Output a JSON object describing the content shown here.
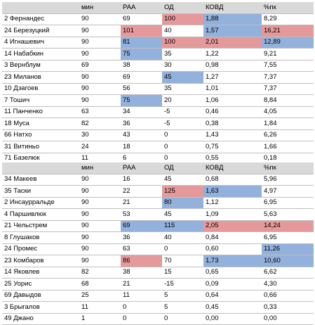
{
  "colors": {
    "header": "#d9d9d9",
    "red_highlight": "#e6999b",
    "blue_highlight": "#92b1dd"
  },
  "tables": [
    {
      "headers": [
        "",
        "мин",
        "РАА",
        "ОД",
        "КОВД",
        "%пк"
      ],
      "rows": [
        {
          "cells": [
            "2 Фернандес",
            "90",
            "69",
            "100",
            "1,88",
            "8,29"
          ],
          "hl": [
            "",
            "",
            "",
            "red",
            "blue",
            ""
          ]
        },
        {
          "cells": [
            "24 Березуцкий",
            "90",
            "101",
            "40",
            "1,57",
            "16,21"
          ],
          "hl": [
            "",
            "",
            "red",
            "",
            "blue",
            "red"
          ]
        },
        {
          "cells": [
            "4 Игнашевич",
            "90",
            "81",
            "100",
            "2,01",
            "12,89"
          ],
          "hl": [
            "",
            "",
            "blue",
            "red",
            "red",
            "blue"
          ]
        },
        {
          "cells": [
            "14 Набабкин",
            "90",
            "75",
            "35",
            "1,22",
            "9,21"
          ],
          "hl": [
            "",
            "",
            "blue",
            "",
            "",
            ""
          ]
        },
        {
          "cells": [
            "3 Вернблум",
            "69",
            "38",
            "30",
            "0,98",
            "7,55"
          ],
          "hl": [
            "",
            "",
            "",
            "",
            "",
            ""
          ]
        },
        {
          "cells": [
            "23 Миланов",
            "90",
            "69",
            "45",
            "1,27",
            "7,37"
          ],
          "hl": [
            "",
            "",
            "",
            "blue",
            "",
            ""
          ]
        },
        {
          "cells": [
            "10 Дзагоев",
            "90",
            "56",
            "35",
            "1,01",
            "7,37"
          ],
          "hl": [
            "",
            "",
            "",
            "",
            "",
            ""
          ]
        },
        {
          "cells": [
            "7 Тошич",
            "90",
            "75",
            "20",
            "1,06",
            "8,84"
          ],
          "hl": [
            "",
            "",
            "blue",
            "",
            "",
            ""
          ]
        },
        {
          "cells": [
            "11 Панченко",
            "63",
            "34",
            "-5",
            "0,46",
            "4,05"
          ],
          "hl": [
            "",
            "",
            "",
            "",
            "",
            ""
          ]
        },
        {
          "cells": [
            "18 Муса",
            "82",
            "36",
            "-5",
            "0,38",
            "1,84"
          ],
          "hl": [
            "",
            "",
            "",
            "",
            "",
            ""
          ]
        },
        {
          "cells": [
            "66 Натхо",
            "30",
            "43",
            "0",
            "1,43",
            "6,26"
          ],
          "hl": [
            "",
            "",
            "",
            "",
            "",
            ""
          ]
        },
        {
          "cells": [
            "31 Витиньо",
            "24",
            "18",
            "0",
            "0,75",
            "1,66"
          ],
          "hl": [
            "",
            "",
            "",
            "",
            "",
            ""
          ]
        },
        {
          "cells": [
            "71 Базелюк",
            "11",
            "6",
            "0",
            "0,55",
            "0,18"
          ],
          "hl": [
            "",
            "",
            "",
            "",
            "",
            ""
          ]
        }
      ]
    },
    {
      "headers": [
        "",
        "мин",
        "РАА",
        "ОД",
        "КОВД",
        "%пк"
      ],
      "rows": [
        {
          "cells": [
            "34 Макеев",
            "90",
            "16",
            "45",
            "0,68",
            "5,96"
          ],
          "hl": [
            "",
            "",
            "",
            "",
            "",
            ""
          ]
        },
        {
          "cells": [
            "35 Таски",
            "90",
            "22",
            "125",
            "1,63",
            "4,97"
          ],
          "hl": [
            "",
            "",
            "",
            "red",
            "blue",
            ""
          ]
        },
        {
          "cells": [
            "2 Инсаурральде",
            "90",
            "21",
            "80",
            "1,12",
            "6,95"
          ],
          "hl": [
            "",
            "",
            "",
            "blue",
            "",
            ""
          ]
        },
        {
          "cells": [
            "4 Паршивлюк",
            "90",
            "53",
            "45",
            "1,09",
            "5,63"
          ],
          "hl": [
            "",
            "",
            "",
            "",
            "",
            ""
          ]
        },
        {
          "cells": [
            "21 Чельстрем",
            "90",
            "69",
            "115",
            "2,05",
            "14,24"
          ],
          "hl": [
            "",
            "",
            "blue",
            "blue",
            "red",
            "red"
          ]
        },
        {
          "cells": [
            "8 Глушаков",
            "90",
            "36",
            "40",
            "0,84",
            "6,95"
          ],
          "hl": [
            "",
            "",
            "",
            "",
            "",
            ""
          ]
        },
        {
          "cells": [
            "24 Промес",
            "90",
            "63",
            "0",
            "0,60",
            "11,26"
          ],
          "hl": [
            "",
            "",
            "",
            "",
            "",
            "blue"
          ]
        },
        {
          "cells": [
            "23 Комбаров",
            "90",
            "86",
            "70",
            "1,73",
            "10,60"
          ],
          "hl": [
            "",
            "",
            "red",
            "",
            "blue",
            "blue"
          ]
        },
        {
          "cells": [
            "14 Яковлев",
            "82",
            "38",
            "15",
            "0,65",
            "6,62"
          ],
          "hl": [
            "",
            "",
            "",
            "",
            "",
            ""
          ]
        },
        {
          "cells": [
            "25 Уорис",
            "68",
            "21",
            "-15",
            "0,09",
            "4,30"
          ],
          "hl": [
            "",
            "",
            "",
            "",
            "",
            ""
          ]
        },
        {
          "cells": [
            "69 Давыдов",
            "25",
            "11",
            "5",
            "0,64",
            "0,66"
          ],
          "hl": [
            "",
            "",
            "",
            "",
            "",
            ""
          ]
        },
        {
          "cells": [
            "3 Брыгалов",
            "11",
            "0",
            "5",
            "0,45",
            "0,33"
          ],
          "hl": [
            "",
            "",
            "",
            "",
            "",
            ""
          ]
        },
        {
          "cells": [
            "49 Джано",
            "1",
            "0",
            "0",
            "0,00",
            "0,00"
          ],
          "hl": [
            "",
            "",
            "",
            "",
            "",
            ""
          ]
        }
      ]
    }
  ]
}
